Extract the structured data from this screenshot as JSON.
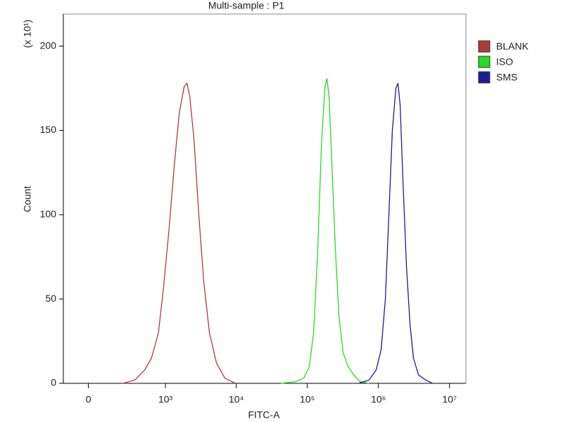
{
  "chart_data": {
    "type": "line",
    "title": "Multi-sample : P1",
    "x_label": "FITC-A",
    "y_label": "Count",
    "y_multiplier": "(x 10¹)",
    "xscale": "biexponential",
    "xlim": [
      -150,
      17000000
    ],
    "xticks": [
      0,
      {
        "value": 1000,
        "label": "10³"
      },
      {
        "value": 10000,
        "label": "10⁴"
      },
      {
        "value": 100000,
        "label": "10⁵"
      },
      {
        "value": 1000000,
        "label": "10⁶"
      },
      {
        "value": 10000000,
        "label": "10⁷"
      }
    ],
    "ylim": [
      0,
      219
    ],
    "yticks": [
      0,
      50,
      100,
      150,
      200
    ],
    "legend": "right",
    "series": [
      {
        "name": "BLANK",
        "color": "#b23a3a",
        "x": [
          227,
          357,
          502,
          631,
          793,
          930,
          1117,
          1340,
          1570,
          1845,
          2020,
          2215,
          2535,
          2970,
          3490,
          4190,
          5260,
          6920,
          9730
        ],
        "values": [
          0,
          2,
          8,
          15,
          30,
          55,
          90,
          130,
          160,
          176,
          178,
          170,
          145,
          100,
          60,
          30,
          12,
          3,
          0
        ]
      },
      {
        "name": "ISO",
        "color": "#22dd22",
        "x": [
          42800,
          67600,
          89000,
          106700,
          122300,
          140300,
          157100,
          176200,
          188400,
          201900,
          221300,
          247800,
          278000,
          318500,
          373300,
          448600,
          550900,
          739800
        ],
        "values": [
          0,
          1,
          3,
          10,
          30,
          80,
          140,
          175,
          181,
          170,
          130,
          80,
          40,
          18,
          10,
          5,
          1,
          0
        ]
      },
      {
        "name": "SMS",
        "color": "#1c1c96",
        "x": [
          526100,
          739800,
          931000,
          1091000,
          1251000,
          1403000,
          1570000,
          1762000,
          1884000,
          2019000,
          2213000,
          2478000,
          2780000,
          3113000,
          3657000,
          4593000,
          5769000
        ],
        "values": [
          0,
          2,
          8,
          20,
          50,
          100,
          150,
          175,
          178,
          165,
          120,
          70,
          35,
          15,
          5,
          2,
          0
        ]
      }
    ]
  }
}
